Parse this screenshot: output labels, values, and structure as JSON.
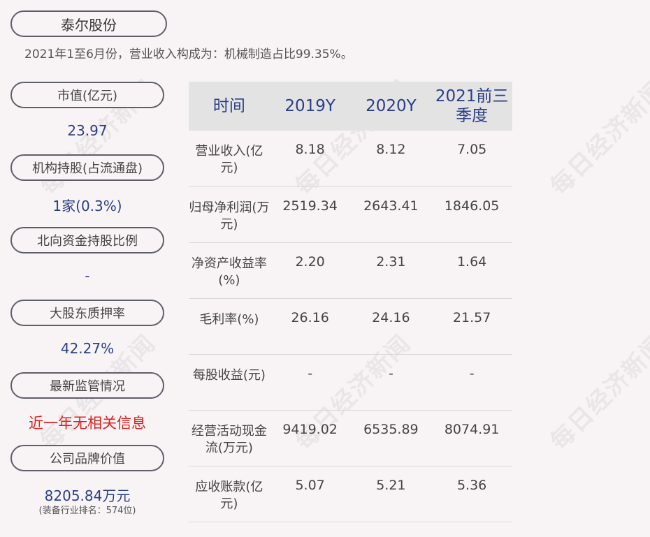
{
  "company": "泰尔股份",
  "subtitle": "2021年1至6月份，营业收入构成为：机械制造占比99.35%。",
  "left_panel": [
    {
      "label": "市值(亿元)",
      "value": "23.97"
    },
    {
      "label": "机构持股(占流通盘)",
      "value": "1家(0.3%)"
    },
    {
      "label": "北向资金持股比例",
      "value": "-"
    },
    {
      "label": "大股东质押率",
      "value": "42.27%"
    },
    {
      "label": "最新监管情况",
      "value": "近一年无相关信息",
      "value_color": "#e02020"
    },
    {
      "label": "公司品牌价值",
      "value": "8205.84万元",
      "note": "(装备行业排名：574位)"
    }
  ],
  "table": {
    "headers": [
      "时间",
      "2019Y",
      "2020Y",
      "2021前三季度"
    ],
    "rows": [
      {
        "label": "营业收入(亿元)",
        "values": [
          "8.18",
          "8.12",
          "7.05"
        ]
      },
      {
        "label": "归母净利润(万元)",
        "values": [
          "2519.34",
          "2643.41",
          "1846.05"
        ]
      },
      {
        "label": "净资产收益率(%)",
        "values": [
          "2.20",
          "2.31",
          "1.64"
        ]
      },
      {
        "label": "毛利率(%)",
        "values": [
          "26.16",
          "24.16",
          "21.57"
        ]
      },
      {
        "label": "每股收益(元)",
        "values": [
          "-",
          "-",
          "-"
        ]
      },
      {
        "label": "经营活动现金流(万元)",
        "values": [
          "9419.02",
          "6535.89",
          "8074.91"
        ]
      },
      {
        "label": "应收账款(亿元)",
        "values": [
          "5.07",
          "5.21",
          "5.36"
        ]
      }
    ]
  },
  "watermark": "每日经济新闻",
  "colors": {
    "accent": "#2b3f86",
    "alert": "#e02020",
    "header_bg": "#e3e3e3",
    "background": "#f8f4f6"
  }
}
